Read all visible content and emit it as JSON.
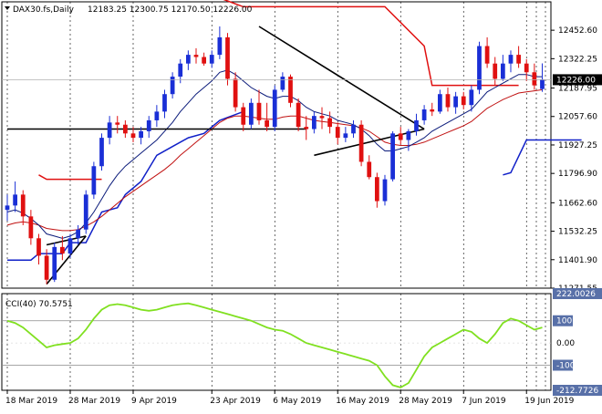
{
  "header": {
    "symbol": "DAX30.fs,Daily",
    "ohlc": "12183.25 12300.75 12170.50 12226.00"
  },
  "colors": {
    "bull": "#1a2fd6",
    "bear": "#e01010",
    "sma_fast": "#0a1a7a",
    "sma_slow": "#c01010",
    "stop_high": "#e01010",
    "stop_low": "#1020c8",
    "cci": "#80e020",
    "trendline": "#000000",
    "price_tag": "#000000"
  },
  "chart_data": [
    {
      "type": "candlestick",
      "title": "DAX30.fs,Daily",
      "ylim": [
        11271.55,
        12582.6
      ],
      "y_ticks": [
        "12452.60",
        "12322.25",
        "12187.95",
        "12057.60",
        "11927.25",
        "11796.90",
        "11662.60",
        "11532.25",
        "11401.90",
        "11271.55"
      ],
      "y_tick_values": [
        12452.6,
        12322.25,
        12187.95,
        12057.6,
        11927.25,
        11796.9,
        11662.6,
        11532.25,
        11401.9,
        11271.55
      ],
      "current_price": "12226.00",
      "current_price_value": 12226.0,
      "x_ticks": [
        "18 Mar 2019",
        "28 Mar 2019",
        "9 Apr 2019",
        "23 Apr 2019",
        "6 May 2019",
        "16 May 2019",
        "28 May 2019",
        "7 Jun 2019",
        "19 Jun 2019"
      ],
      "x_tick_index": [
        0,
        8,
        16,
        26,
        34,
        42,
        50,
        58,
        66
      ],
      "candles": [
        [
          11630,
          11700,
          11580,
          11650
        ],
        [
          11650,
          11760,
          11620,
          11700
        ],
        [
          11700,
          11720,
          11560,
          11600
        ],
        [
          11600,
          11630,
          11470,
          11500
        ],
        [
          11500,
          11520,
          11380,
          11420
        ],
        [
          11420,
          11450,
          11290,
          11310
        ],
        [
          11310,
          11480,
          11300,
          11460
        ],
        [
          11460,
          11510,
          11400,
          11430
        ],
        [
          11430,
          11520,
          11410,
          11500
        ],
        [
          11500,
          11560,
          11470,
          11540
        ],
        [
          11540,
          11720,
          11520,
          11700
        ],
        [
          11700,
          11850,
          11680,
          11830
        ],
        [
          11830,
          11980,
          11810,
          11960
        ],
        [
          11960,
          12060,
          11930,
          12030
        ],
        [
          12030,
          12060,
          11980,
          12020
        ],
        [
          12020,
          12040,
          11960,
          11980
        ],
        [
          11980,
          12010,
          11940,
          11960
        ],
        [
          11960,
          12010,
          11930,
          11990
        ],
        [
          11990,
          12060,
          11960,
          12040
        ],
        [
          12040,
          12110,
          12010,
          12080
        ],
        [
          12080,
          12180,
          12050,
          12160
        ],
        [
          12160,
          12260,
          12140,
          12240
        ],
        [
          12240,
          12320,
          12210,
          12300
        ],
        [
          12300,
          12360,
          12270,
          12340
        ],
        [
          12340,
          12370,
          12300,
          12330
        ],
        [
          12330,
          12350,
          12290,
          12300
        ],
        [
          12300,
          12360,
          12280,
          12340
        ],
        [
          12340,
          12470,
          12320,
          12420
        ],
        [
          12420,
          12440,
          12200,
          12230
        ],
        [
          12230,
          12260,
          12080,
          12100
        ],
        [
          12100,
          12120,
          11990,
          12020
        ],
        [
          12020,
          12140,
          12000,
          12120
        ],
        [
          12120,
          12180,
          12020,
          12040
        ],
        [
          12040,
          12120,
          11990,
          12010
        ],
        [
          12010,
          12200,
          11990,
          12180
        ],
        [
          12180,
          12260,
          12170,
          12240
        ],
        [
          12240,
          12250,
          12100,
          12120
        ],
        [
          12120,
          12140,
          11990,
          12010
        ],
        [
          12010,
          12060,
          11950,
          12000
        ],
        [
          12000,
          12080,
          11980,
          12060
        ],
        [
          12060,
          12100,
          12000,
          12050
        ],
        [
          12050,
          12080,
          11980,
          12010
        ],
        [
          12010,
          12030,
          11930,
          11960
        ],
        [
          11960,
          12010,
          11940,
          11980
        ],
        [
          11980,
          12040,
          11960,
          12020
        ],
        [
          12020,
          12040,
          11830,
          11850
        ],
        [
          11850,
          11880,
          11770,
          11780
        ],
        [
          11780,
          11800,
          11640,
          11670
        ],
        [
          11670,
          11790,
          11650,
          11770
        ],
        [
          11770,
          11990,
          11760,
          11980
        ],
        [
          11980,
          12010,
          11930,
          11950
        ],
        [
          11950,
          12000,
          11900,
          11990
        ],
        [
          11990,
          12070,
          11970,
          12040
        ],
        [
          12040,
          12110,
          12020,
          12090
        ],
        [
          12090,
          12120,
          12060,
          12080
        ],
        [
          12080,
          12180,
          12070,
          12160
        ],
        [
          12160,
          12190,
          12080,
          12100
        ],
        [
          12100,
          12170,
          12070,
          12150
        ],
        [
          12150,
          12170,
          12090,
          12110
        ],
        [
          12110,
          12200,
          12080,
          12180
        ],
        [
          12180,
          12400,
          12160,
          12380
        ],
        [
          12380,
          12420,
          12280,
          12300
        ],
        [
          12300,
          12330,
          12200,
          12230
        ],
        [
          12230,
          12340,
          12220,
          12300
        ],
        [
          12300,
          12360,
          12260,
          12340
        ],
        [
          12340,
          12380,
          12280,
          12300
        ],
        [
          12300,
          12320,
          12220,
          12260
        ],
        [
          12260,
          12300,
          12180,
          12200
        ],
        [
          12183.25,
          12300.75,
          12170.5,
          12226.0
        ]
      ],
      "sma_fast": [
        11620,
        11630,
        11615,
        11590,
        11560,
        11520,
        11510,
        11500,
        11510,
        11530,
        11570,
        11620,
        11680,
        11740,
        11790,
        11830,
        11860,
        11890,
        11920,
        11950,
        11990,
        12030,
        12080,
        12120,
        12160,
        12190,
        12220,
        12260,
        12270,
        12250,
        12220,
        12190,
        12170,
        12150,
        12140,
        12150,
        12150,
        12130,
        12100,
        12080,
        12070,
        12060,
        12040,
        12030,
        12020,
        12000,
        11970,
        11930,
        11900,
        11900,
        11910,
        11920,
        11940,
        11960,
        11990,
        12010,
        12030,
        12050,
        12070,
        12090,
        12130,
        12170,
        12190,
        12210,
        12230,
        12250,
        12250,
        12240,
        12240
      ],
      "sma_slow": [
        11560,
        11570,
        11575,
        11570,
        11560,
        11545,
        11540,
        11535,
        11535,
        11540,
        11555,
        11575,
        11600,
        11630,
        11660,
        11690,
        11715,
        11740,
        11765,
        11790,
        11815,
        11845,
        11880,
        11910,
        11940,
        11970,
        12000,
        12030,
        12050,
        12060,
        12060,
        12055,
        12050,
        12045,
        12045,
        12055,
        12060,
        12060,
        12050,
        12040,
        12035,
        12030,
        12025,
        12020,
        12015,
        12005,
        11990,
        11965,
        11940,
        11930,
        11925,
        11925,
        11930,
        11940,
        11955,
        11970,
        11985,
        12000,
        12015,
        12035,
        12065,
        12095,
        12115,
        12135,
        12150,
        12165,
        12170,
        12175,
        12180
      ],
      "stop_high": [
        null,
        null,
        null,
        null,
        null,
        null,
        null,
        null,
        null,
        null,
        null,
        null,
        null,
        null,
        null,
        null,
        null,
        null,
        null,
        null,
        null,
        null,
        null,
        null,
        null,
        null,
        null,
        null,
        null,
        null,
        null,
        null,
        null,
        null,
        null,
        null,
        null,
        null,
        null,
        null,
        null,
        null,
        null,
        null,
        null,
        null,
        null,
        null,
        null,
        null,
        null,
        null,
        null,
        null,
        null,
        null,
        null,
        null,
        null,
        null,
        null,
        null,
        null,
        null,
        null,
        null,
        null,
        null,
        null
      ],
      "stop_low": [
        null,
        null,
        null,
        null,
        null,
        null,
        null,
        null,
        null,
        null,
        null,
        null,
        null,
        null,
        null,
        null,
        null,
        null,
        null,
        null,
        null,
        null,
        null,
        null,
        null,
        null,
        null,
        null,
        null,
        null,
        null,
        null,
        null,
        null,
        null,
        null,
        null,
        null,
        null,
        null,
        null,
        null,
        null,
        null,
        null,
        null,
        null,
        null,
        null,
        null,
        null,
        null,
        null,
        null,
        null,
        null,
        null,
        null,
        null,
        null,
        null,
        null,
        null,
        null,
        null,
        null,
        null,
        null,
        null
      ],
      "stop_high_segments": [
        [
          [
            4,
            11790
          ],
          [
            5,
            11770
          ],
          [
            12,
            11770
          ]
        ],
        [
          [
            27,
            12600
          ],
          [
            30,
            12560
          ],
          [
            48,
            12560
          ],
          [
            53,
            12380
          ],
          [
            54,
            12200
          ],
          [
            65,
            12200
          ]
        ]
      ],
      "stop_low_segments": [
        [
          [
            0,
            11400
          ],
          [
            3,
            11400
          ],
          [
            4,
            11430
          ],
          [
            7,
            11430
          ],
          [
            8,
            11480
          ],
          [
            10,
            11480
          ],
          [
            12,
            11620
          ],
          [
            14,
            11640
          ],
          [
            15,
            11700
          ],
          [
            17,
            11760
          ],
          [
            19,
            11880
          ],
          [
            21,
            11920
          ],
          [
            23,
            11960
          ],
          [
            25,
            11980
          ],
          [
            27,
            12040
          ],
          [
            30,
            12080
          ]
        ],
        [
          [
            63,
            11790
          ],
          [
            64,
            11800
          ],
          [
            66,
            11950
          ],
          [
            73,
            11950
          ]
        ]
      ],
      "trendlines": [
        [
          [
            0,
            12000
          ],
          [
            38,
            12000
          ]
        ],
        [
          [
            39,
            11880
          ],
          [
            53,
            12000
          ]
        ],
        [
          [
            32,
            12470
          ],
          [
            53,
            12000
          ]
        ],
        [
          [
            5,
            11290
          ],
          [
            10,
            11510
          ]
        ],
        [
          [
            5,
            11470
          ],
          [
            10,
            11510
          ]
        ]
      ]
    },
    {
      "type": "line",
      "title": "CCI(40) 70.5751",
      "ylim": [
        -212.7726,
        222.0026
      ],
      "y_ticks": [
        "222.0026",
        "100",
        "0.00",
        "-100",
        "-212.7726"
      ],
      "y_tick_values": [
        222.0026,
        100,
        0,
        -100,
        -212.7726
      ],
      "levels": [
        100,
        -100
      ],
      "values": [
        100,
        90,
        70,
        40,
        10,
        -20,
        -10,
        -5,
        0,
        20,
        60,
        110,
        150,
        170,
        175,
        170,
        160,
        150,
        145,
        150,
        160,
        170,
        175,
        178,
        170,
        160,
        150,
        140,
        130,
        120,
        110,
        100,
        85,
        70,
        60,
        55,
        40,
        20,
        0,
        -10,
        -20,
        -30,
        -40,
        -50,
        -60,
        -70,
        -80,
        -100,
        -150,
        -190,
        -200,
        -180,
        -120,
        -60,
        -20,
        0,
        20,
        40,
        60,
        50,
        20,
        0,
        40,
        90,
        110,
        100,
        80,
        60,
        70
      ]
    }
  ]
}
